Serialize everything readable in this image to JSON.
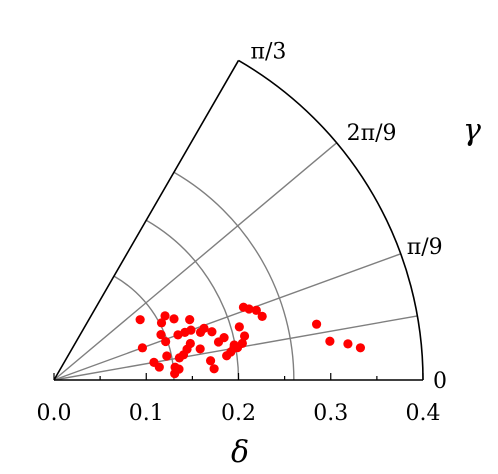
{
  "chart_data": {
    "type": "scatter",
    "coordinate_system": "polar sector (Bohr-Mottelson beta-gamma style)",
    "title": "",
    "radial_axis": {
      "label": "δ",
      "range": [
        0.0,
        0.4
      ],
      "tick_labels": [
        "0.0",
        "0.1",
        "0.2",
        "0.3",
        "0.4"
      ],
      "minor_ticks_every": 0.05
    },
    "angular_axis": {
      "label": "γ",
      "range_labels": [
        "0",
        "π/9",
        "2π/9",
        "π/3"
      ],
      "gridlines_at": [
        "π/18",
        "π/9",
        "2π/9"
      ],
      "gridlines_shown_labels": [
        "π/9",
        "2π/9"
      ]
    },
    "radial_gridlines": [
      0.13,
      0.2,
      0.26
    ],
    "grid": true,
    "series": [
      {
        "marker_color": "#ff0000",
        "points_delta_gamma_deg": [
          [
            0.146,
            27
          ],
          [
            0.132,
            28
          ],
          [
            0.126,
            23
          ],
          [
            0.128,
            19
          ],
          [
            0.143,
            20
          ],
          [
            0.151,
            20
          ],
          [
            0.158,
            20
          ],
          [
            0.167,
            18
          ],
          [
            0.172,
            19
          ],
          [
            0.179,
            17
          ],
          [
            0.153,
            15
          ],
          [
            0.162,
            12
          ],
          [
            0.148,
            13
          ],
          [
            0.143,
            11
          ],
          [
            0.138,
            10
          ],
          [
            0.125,
            12
          ],
          [
            0.132,
            6
          ],
          [
            0.131,
            3
          ],
          [
            0.136,
            5
          ],
          [
            0.171,
            7
          ],
          [
            0.174,
            4
          ],
          [
            0.189,
            8
          ],
          [
            0.194,
            9
          ],
          [
            0.198,
            10
          ],
          [
            0.199,
            11
          ],
          [
            0.202,
            10
          ],
          [
            0.208,
            11
          ],
          [
            0.212,
            13
          ],
          [
            0.209,
            16
          ],
          [
            0.225,
            20
          ],
          [
            0.232,
            19
          ],
          [
            0.22,
            21
          ],
          [
            0.236,
            17
          ],
          [
            0.19,
            14
          ],
          [
            0.183,
            13
          ],
          [
            0.161,
            24
          ],
          [
            0.139,
            30
          ],
          [
            0.114,
            35
          ],
          [
            0.102,
            20
          ],
          [
            0.11,
            10
          ],
          [
            0.115,
            7
          ],
          [
            0.291,
            12
          ],
          [
            0.302,
            8
          ],
          [
            0.321,
            7
          ],
          [
            0.334,
            6
          ]
        ]
      }
    ],
    "color_stroke": "#7f7f7f",
    "color_frame": "#000000"
  }
}
